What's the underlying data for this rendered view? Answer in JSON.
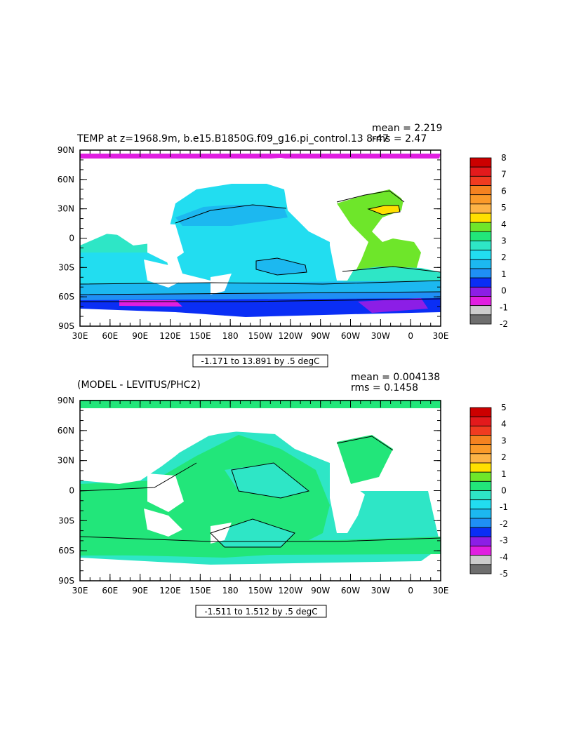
{
  "map1": {
    "title": "TEMP at z=1968.9m, b.e15.B1850G.f09_g16.pi_control.13  8-47",
    "mean": "mean = 2.219",
    "rms": "rms = 2.47",
    "range_label": "-1.171 to 13.891 by .5 degC",
    "lat_labels": [
      "90N",
      "60N",
      "30N",
      "0",
      "30S",
      "60S",
      "90S"
    ],
    "lon_labels": [
      "30E",
      "60E",
      "90E",
      "120E",
      "150E",
      "180",
      "150W",
      "120W",
      "90W",
      "60W",
      "30W",
      "0",
      "30E"
    ],
    "colorbar_labels": [
      "8",
      "7",
      "6",
      "5",
      "4",
      "3",
      "2",
      "1",
      "0",
      "-1",
      "-2"
    ],
    "colorbar_colors": [
      "#cc0000",
      "#e31a1c",
      "#f03b20",
      "#f58220",
      "#fb9a29",
      "#fdb346",
      "#ffe000",
      "#6ee62a",
      "#22e67a",
      "#2ee6c6",
      "#22ddf0",
      "#1cb8f0",
      "#1f8ff5",
      "#0a2ef5",
      "#8c1ee6",
      "#e01ee0",
      "#cccccc",
      "#6e6e6e"
    ]
  },
  "map2": {
    "title": "(MODEL - LEVITUS/PHC2)",
    "mean": "mean = 0.004138",
    "rms": "rms = 0.1458",
    "range_label": "-1.511 to 1.512 by .5 degC",
    "lat_labels": [
      "90N",
      "60N",
      "30N",
      "0",
      "30S",
      "60S",
      "90S"
    ],
    "lon_labels": [
      "30E",
      "60E",
      "90E",
      "120E",
      "150E",
      "180",
      "150W",
      "120W",
      "90W",
      "60W",
      "30W",
      "0",
      "30E"
    ],
    "colorbar_labels": [
      "5",
      "4",
      "3",
      "2",
      "1",
      "0",
      "-1",
      "-2",
      "-3",
      "-4",
      "-5"
    ],
    "colorbar_colors": [
      "#cc0000",
      "#e31a1c",
      "#f03b20",
      "#f58220",
      "#fb9a29",
      "#fdb346",
      "#ffe000",
      "#6ee62a",
      "#22e67a",
      "#2ee6c6",
      "#22ddf0",
      "#1cb8f0",
      "#1f8ff5",
      "#0a2ef5",
      "#8c1ee6",
      "#e01ee0",
      "#cccccc",
      "#6e6e6e"
    ]
  }
}
